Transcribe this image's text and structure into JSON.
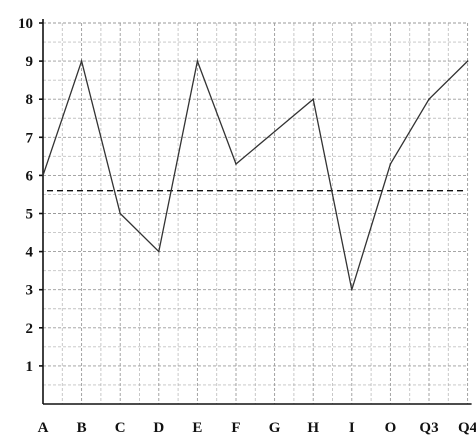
{
  "chart_data": {
    "type": "line",
    "title": "",
    "xlabel": "",
    "ylabel": "",
    "categories": [
      "A",
      "B",
      "C",
      "D",
      "E",
      "F",
      "G",
      "H",
      "I",
      "O",
      "Q3",
      "Q4"
    ],
    "y_ticks": [
      "1",
      "2",
      "3",
      "4",
      "5",
      "6",
      "7",
      "8",
      "9",
      "10"
    ],
    "ylim": [
      0,
      10
    ],
    "grid": true,
    "series": [
      {
        "x": [
          0,
          1,
          2,
          3,
          4,
          5,
          7,
          8,
          9,
          10,
          11
        ],
        "values": [
          6,
          9,
          5,
          4,
          9,
          6.3,
          8,
          3,
          6.3,
          8,
          9
        ],
        "color": "#333333",
        "style": "solid"
      }
    ],
    "reference_lines": [
      {
        "y": 5.6,
        "style": "dashed",
        "color": "#111111"
      }
    ]
  }
}
